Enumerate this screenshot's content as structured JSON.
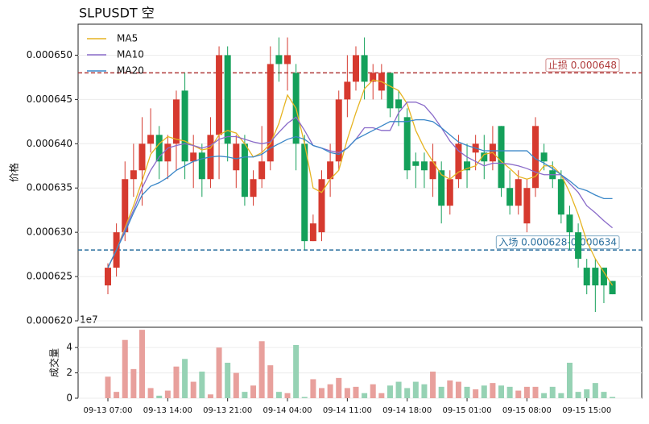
{
  "chart_data": {
    "type": "candlestick",
    "title": "SLPUSDT  空",
    "ylabel": "价格",
    "x": [
      "09-13 07:00",
      "09-13 08:00",
      "09-13 09:00",
      "09-13 10:00",
      "09-13 11:00",
      "09-13 12:00",
      "09-13 13:00",
      "09-13 14:00",
      "09-13 15:00",
      "09-13 16:00",
      "09-13 17:00",
      "09-13 18:00",
      "09-13 19:00",
      "09-13 20:00",
      "09-13 21:00",
      "09-13 22:00",
      "09-13 23:00",
      "09-14 00:00",
      "09-14 01:00",
      "09-14 02:00",
      "09-14 03:00",
      "09-14 04:00",
      "09-14 05:00",
      "09-14 06:00",
      "09-14 07:00",
      "09-14 08:00",
      "09-14 09:00",
      "09-14 10:00",
      "09-14 11:00",
      "09-14 12:00",
      "09-14 13:00",
      "09-14 14:00",
      "09-14 15:00",
      "09-14 16:00",
      "09-14 17:00",
      "09-14 18:00",
      "09-14 19:00",
      "09-14 20:00",
      "09-14 21:00",
      "09-14 22:00",
      "09-14 23:00",
      "09-15 00:00",
      "09-15 01:00",
      "09-15 02:00",
      "09-15 03:00",
      "09-15 04:00",
      "09-15 05:00",
      "09-15 06:00",
      "09-15 07:00",
      "09-15 08:00",
      "09-15 09:00",
      "09-15 10:00",
      "09-15 11:00",
      "09-15 12:00",
      "09-15 13:00",
      "09-15 14:00",
      "09-15 15:00",
      "09-15 16:00",
      "09-15 17:00",
      "09-15 18:00"
    ],
    "xticks": [
      "09-13 07:00",
      "09-13 14:00",
      "09-13 21:00",
      "09-14 04:00",
      "09-14 11:00",
      "09-14 18:00",
      "09-15 01:00",
      "09-15 08:00",
      "09-15 15:00"
    ],
    "open": [
      0.000624,
      0.000626,
      0.00063,
      0.000636,
      0.000637,
      0.00064,
      0.000641,
      0.000638,
      0.00064,
      0.000646,
      0.000638,
      0.000639,
      0.000636,
      0.000641,
      0.00065,
      0.000637,
      0.00064,
      0.000634,
      0.000636,
      0.000638,
      0.00065,
      0.000649,
      0.000648,
      0.00064,
      0.000629,
      0.00063,
      0.000636,
      0.000638,
      0.000645,
      0.000647,
      0.00065,
      0.000647,
      0.000646,
      0.000648,
      0.000645,
      0.000643,
      0.000638,
      0.000638,
      0.000636,
      0.000637,
      0.000633,
      0.000636,
      0.000638,
      0.000639,
      0.000639,
      0.000638,
      0.000642,
      0.000635,
      0.000633,
      0.000631,
      0.000635,
      0.000639,
      0.000637,
      0.000636,
      0.000632,
      0.00063,
      0.000626,
      0.000626,
      0.000626,
      0.0006245
    ],
    "high": [
      0.0006265,
      0.000631,
      0.000638,
      0.00064,
      0.000643,
      0.000644,
      0.000642,
      0.000641,
      0.000646,
      0.000648,
      0.000641,
      0.00064,
      0.000643,
      0.000651,
      0.000651,
      0.000641,
      0.000641,
      0.000637,
      0.000642,
      0.000651,
      0.000652,
      0.000652,
      0.000649,
      0.000641,
      0.000632,
      0.000637,
      0.00064,
      0.000646,
      0.00065,
      0.000651,
      0.000652,
      0.000649,
      0.000649,
      0.000648,
      0.000646,
      0.000644,
      0.000639,
      0.000639,
      0.00064,
      0.000638,
      0.000637,
      0.000641,
      0.00064,
      0.000641,
      0.000641,
      0.000642,
      0.000642,
      0.000637,
      0.000637,
      0.000636,
      0.000643,
      0.00064,
      0.000638,
      0.000637,
      0.000633,
      0.000631,
      0.000627,
      0.000627,
      0.000626,
      0.0006245
    ],
    "low": [
      0.000623,
      0.000625,
      0.000629,
      0.000634,
      0.000633,
      0.000639,
      0.000636,
      0.000636,
      0.000637,
      0.000636,
      0.000635,
      0.000634,
      0.000635,
      0.000636,
      0.000638,
      0.000635,
      0.000633,
      0.000633,
      0.000635,
      0.000637,
      0.000647,
      0.000646,
      0.000637,
      0.000628,
      0.000629,
      0.000629,
      0.000634,
      0.000637,
      0.000643,
      0.000646,
      0.000645,
      0.000645,
      0.000645,
      0.000643,
      0.000642,
      0.000636,
      0.000635,
      0.000635,
      0.000634,
      0.000631,
      0.000632,
      0.000635,
      0.000635,
      0.000637,
      0.000636,
      0.000637,
      0.000634,
      0.000632,
      0.000632,
      0.00063,
      0.000634,
      0.000637,
      0.000635,
      0.000631,
      0.000628,
      0.000626,
      0.000623,
      0.000621,
      0.000622,
      0.000623
    ],
    "close": [
      0.000626,
      0.00063,
      0.000636,
      0.000637,
      0.00064,
      0.000641,
      0.000638,
      0.00064,
      0.000645,
      0.000638,
      0.000639,
      0.000636,
      0.000641,
      0.00065,
      0.00064,
      0.00064,
      0.000634,
      0.000636,
      0.000638,
      0.000649,
      0.000649,
      0.00065,
      0.00064,
      0.000629,
      0.000631,
      0.000636,
      0.000638,
      0.000645,
      0.000647,
      0.00065,
      0.000647,
      0.000648,
      0.000648,
      0.000644,
      0.000644,
      0.000637,
      0.0006375,
      0.000637,
      0.000638,
      0.000633,
      0.000636,
      0.00064,
      0.000637,
      0.00064,
      0.000638,
      0.00064,
      0.000635,
      0.000633,
      0.000636,
      0.000635,
      0.000642,
      0.000638,
      0.000636,
      0.000632,
      0.00063,
      0.000627,
      0.000624,
      0.000624,
      0.000624,
      0.000623
    ],
    "up_color": "#d63a2f",
    "down_color": "#14a05a",
    "ylim": [
      0.00062,
      0.0006535
    ],
    "yticks": [
      {
        "value": 0.00062,
        "label": "0.000620"
      },
      {
        "value": 0.000625,
        "label": "0.000625"
      },
      {
        "value": 0.00063,
        "label": "0.000630"
      },
      {
        "value": 0.000635,
        "label": "0.000635"
      },
      {
        "value": 0.00064,
        "label": "0.000640"
      },
      {
        "value": 0.000645,
        "label": "0.000645"
      },
      {
        "value": 0.00065,
        "label": "0.000650"
      }
    ],
    "grid": true,
    "legend": "upper left",
    "series": [
      {
        "name": "MA5",
        "color": "#e6b422",
        "values": [
          0.000626,
          0.000628,
          0.0006305,
          0.000633,
          0.0006358,
          0.0006388,
          0.00064,
          0.0006408,
          0.0006405,
          0.0006403,
          0.0006398,
          0.0006393,
          0.0006395,
          0.000641,
          0.0006415,
          0.0006412,
          0.00064,
          0.0006385,
          0.000639,
          0.00064,
          0.0006423,
          0.0006455,
          0.000644,
          0.00064,
          0.000635,
          0.0006345,
          0.000636,
          0.000637,
          0.0006405,
          0.0006435,
          0.0006462,
          0.0006472,
          0.000647,
          0.0006465,
          0.000646,
          0.0006445,
          0.0006415,
          0.0006395,
          0.000638,
          0.0006365,
          0.000636,
          0.0006368,
          0.0006372,
          0.0006375,
          0.0006388,
          0.000639,
          0.000638,
          0.0006372,
          0.0006363,
          0.000636,
          0.0006363,
          0.0006375,
          0.0006375,
          0.0006365,
          0.0006345,
          0.000632,
          0.000629,
          0.000627,
          0.0006255,
          0.000624
        ]
      },
      {
        "name": "MA10",
        "color": "#8a6bc9",
        "values": [
          0.000626,
          0.000628,
          0.0006303,
          0.0006325,
          0.000635,
          0.000637,
          0.0006385,
          0.0006395,
          0.0006398,
          0.00064,
          0.0006398,
          0.0006395,
          0.0006398,
          0.0006405,
          0.0006408,
          0.0006408,
          0.0006405,
          0.0006402,
          0.00064,
          0.0006402,
          0.0006413,
          0.0006423,
          0.000643,
          0.0006415,
          0.0006398,
          0.0006395,
          0.0006392,
          0.000639,
          0.0006395,
          0.0006405,
          0.0006418,
          0.0006418,
          0.0006415,
          0.0006415,
          0.0006435,
          0.0006447,
          0.0006447,
          0.0006443,
          0.0006432,
          0.0006418,
          0.0006403,
          0.0006392,
          0.0006385,
          0.000638,
          0.0006375,
          0.0006378,
          0.0006378,
          0.0006377,
          0.0006375,
          0.0006372,
          0.0006368,
          0.0006365,
          0.0006365,
          0.0006365,
          0.0006355,
          0.0006345,
          0.000633,
          0.0006322,
          0.0006313,
          0.0006305
        ]
      },
      {
        "name": "MA20",
        "color": "#3a87c8",
        "values": [
          0.000626,
          0.000628,
          0.00063,
          0.0006322,
          0.0006342,
          0.0006352,
          0.0006356,
          0.0006362,
          0.000637,
          0.0006375,
          0.000638,
          0.0006383,
          0.0006385,
          0.0006386,
          0.0006385,
          0.0006383,
          0.0006385,
          0.0006385,
          0.0006388,
          0.0006395,
          0.00064,
          0.0006405,
          0.0006408,
          0.0006405,
          0.0006398,
          0.0006395,
          0.000639,
          0.0006388,
          0.0006395,
          0.0006405,
          0.000641,
          0.0006415,
          0.000642,
          0.0006425,
          0.0006425,
          0.0006425,
          0.0006427,
          0.0006427,
          0.0006425,
          0.0006418,
          0.000641,
          0.0006402,
          0.0006398,
          0.0006395,
          0.0006392,
          0.0006392,
          0.0006392,
          0.0006392,
          0.0006392,
          0.0006392,
          0.0006383,
          0.0006378,
          0.0006372,
          0.0006365,
          0.0006358,
          0.000635,
          0.0006347,
          0.0006342,
          0.0006338,
          0.0006338
        ]
      }
    ],
    "hlines": [
      {
        "value": 0.000648,
        "label": "止损 0.000648",
        "color": "#b03a3a"
      },
      {
        "value": 0.000628,
        "label": "入场 0.000628-0.000634",
        "color": "#2a6f9e"
      }
    ],
    "volume": {
      "ylabel": "成交量",
      "offset_label": "1e7",
      "ylim": [
        0,
        5.6
      ],
      "yticks": [
        0,
        2,
        4
      ],
      "up_color": "#e8a09c",
      "down_color": "#96d2b4",
      "values": [
        1.7,
        0.5,
        4.6,
        2.3,
        5.4,
        0.8,
        0.2,
        0.6,
        2.5,
        3.1,
        1.3,
        2.1,
        0.3,
        4.0,
        2.8,
        2.0,
        0.5,
        1.0,
        4.5,
        2.6,
        0.5,
        0.4,
        4.2,
        0.1,
        1.5,
        0.8,
        1.1,
        1.6,
        0.8,
        0.9,
        0.4,
        1.1,
        0.4,
        1.0,
        1.3,
        0.8,
        1.3,
        1.1,
        2.1,
        0.9,
        1.4,
        1.3,
        0.9,
        0.7,
        1.0,
        1.2,
        1.0,
        0.9,
        0.6,
        0.9,
        0.9,
        0.4,
        0.9,
        0.4,
        2.8,
        0.5,
        0.7,
        1.2,
        0.5,
        0.1
      ]
    }
  }
}
